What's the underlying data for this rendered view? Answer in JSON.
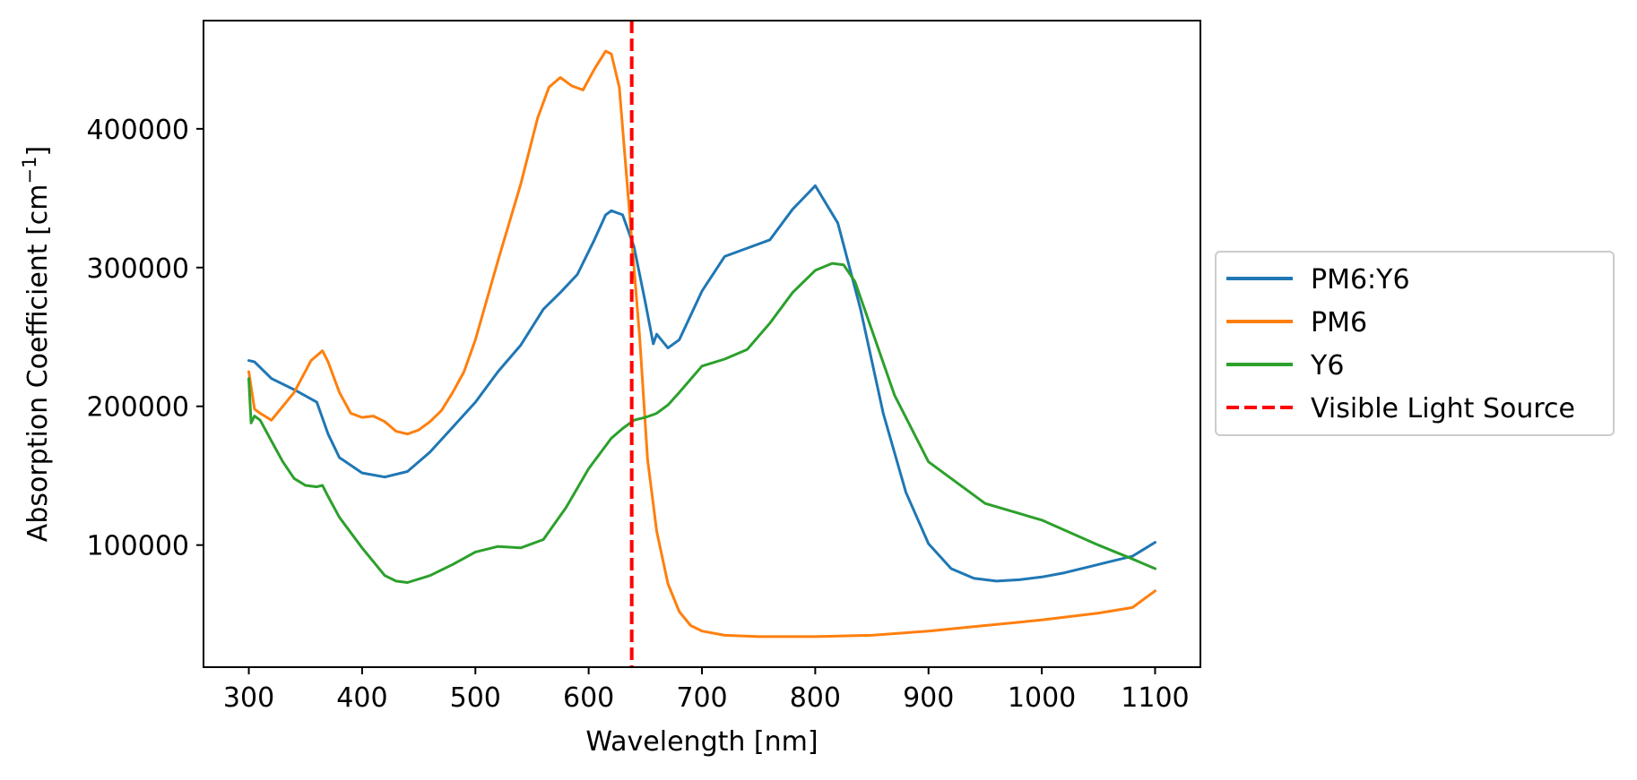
{
  "chart_data": {
    "type": "line",
    "title": "",
    "xlabel": "Wavelength [nm]",
    "ylabel_main": "Absorption Coefficient [cm",
    "ylabel_sup": "−1",
    "ylabel_end": "]",
    "xlim": [
      260,
      1140
    ],
    "ylim": [
      12000,
      478000
    ],
    "x_ticks": [
      300,
      400,
      500,
      600,
      700,
      800,
      900,
      1000,
      1100
    ],
    "x_tick_labels": [
      "300",
      "400",
      "500",
      "600",
      "700",
      "800",
      "900",
      "1000",
      "1100"
    ],
    "y_ticks": [
      100000,
      200000,
      300000,
      400000
    ],
    "y_tick_labels": [
      "100000",
      "200000",
      "300000",
      "400000"
    ],
    "grid": false,
    "legend_position": "outside-right",
    "vline": {
      "x": 638,
      "name": "Visible Light Source",
      "color": "#ff0000",
      "style": "dashed"
    },
    "series": [
      {
        "name": "PM6:Y6",
        "color": "#1f77b4",
        "x": [
          300,
          305,
          320,
          340,
          360,
          370,
          380,
          400,
          420,
          440,
          460,
          480,
          500,
          520,
          540,
          560,
          575,
          590,
          605,
          615,
          620,
          630,
          640,
          650,
          657,
          660,
          670,
          680,
          700,
          720,
          740,
          760,
          780,
          800,
          820,
          840,
          860,
          880,
          900,
          920,
          940,
          960,
          980,
          1000,
          1020,
          1040,
          1060,
          1080,
          1100
        ],
        "y": [
          233000,
          232000,
          220000,
          212000,
          203000,
          180000,
          163000,
          152000,
          149000,
          153000,
          167000,
          185000,
          203000,
          225000,
          244000,
          270000,
          282000,
          295000,
          320000,
          338000,
          341000,
          338000,
          315000,
          275000,
          245000,
          252000,
          242000,
          248000,
          283000,
          308000,
          314000,
          320000,
          342000,
          359000,
          332000,
          270000,
          195000,
          138000,
          101000,
          83000,
          76000,
          74000,
          75000,
          77000,
          80000,
          84000,
          88000,
          92000,
          102000
        ]
      },
      {
        "name": "PM6",
        "color": "#ff7f0e",
        "x": [
          300,
          305,
          310,
          320,
          340,
          355,
          365,
          370,
          380,
          390,
          400,
          410,
          420,
          430,
          440,
          450,
          460,
          470,
          480,
          490,
          500,
          520,
          540,
          555,
          565,
          575,
          585,
          595,
          605,
          615,
          620,
          627,
          635,
          645,
          652,
          660,
          670,
          680,
          690,
          700,
          720,
          750,
          800,
          850,
          900,
          950,
          1000,
          1050,
          1080,
          1100
        ],
        "y": [
          225000,
          198000,
          195000,
          190000,
          210000,
          233000,
          240000,
          232000,
          210000,
          195000,
          192000,
          193000,
          189000,
          182000,
          180000,
          183000,
          189000,
          197000,
          210000,
          225000,
          248000,
          305000,
          360000,
          408000,
          430000,
          437000,
          431000,
          428000,
          443000,
          456000,
          454000,
          430000,
          350000,
          250000,
          162000,
          110000,
          72000,
          52000,
          42000,
          38000,
          35000,
          34000,
          34000,
          35000,
          38000,
          42000,
          46000,
          51000,
          55000,
          67000
        ]
      },
      {
        "name": "Y6",
        "color": "#2ca02c",
        "x": [
          300,
          302,
          305,
          310,
          320,
          330,
          340,
          350,
          360,
          365,
          370,
          380,
          400,
          420,
          430,
          440,
          460,
          480,
          500,
          520,
          540,
          560,
          580,
          600,
          620,
          630,
          640,
          650,
          657,
          660,
          670,
          680,
          700,
          720,
          740,
          760,
          780,
          800,
          815,
          825,
          835,
          850,
          870,
          900,
          950,
          1000,
          1050,
          1080,
          1100
        ],
        "y": [
          220000,
          188000,
          193000,
          190000,
          175000,
          160000,
          148000,
          143000,
          142000,
          143000,
          135000,
          120000,
          98000,
          78000,
          74000,
          73000,
          78000,
          86000,
          95000,
          99000,
          98000,
          104000,
          127000,
          155000,
          177000,
          184000,
          190000,
          192000,
          194000,
          195000,
          201000,
          210000,
          229000,
          234000,
          241000,
          260000,
          282000,
          298000,
          303000,
          302000,
          290000,
          255000,
          208000,
          160000,
          130000,
          118000,
          100000,
          90000,
          83000
        ]
      }
    ]
  }
}
